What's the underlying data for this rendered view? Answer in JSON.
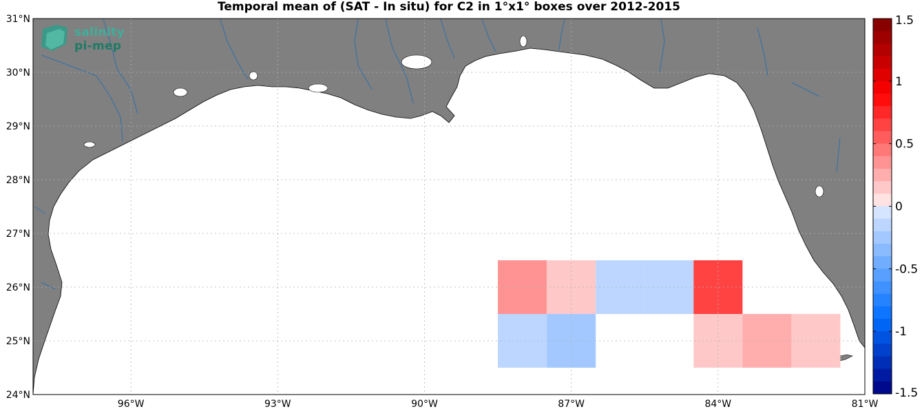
{
  "title": "Temporal mean of (SAT - In situ) for C2 in 1°x1° boxes over 2012-2015",
  "logo": {
    "line1": "salinity",
    "line2": "pi-mep"
  },
  "map": {
    "lon_range": [
      -98.0,
      -81.0
    ],
    "lat_range": [
      24.0,
      31.0
    ],
    "grid": "dotted",
    "land_color": "#808080",
    "river_color": "#2f6fa8",
    "ocean_color": "#ffffff",
    "x_ticks": [
      {
        "lon": -96,
        "label": "96°W"
      },
      {
        "lon": -93,
        "label": "93°W"
      },
      {
        "lon": -90,
        "label": "90°W"
      },
      {
        "lon": -87,
        "label": "87°W"
      },
      {
        "lon": -84,
        "label": "84°W"
      },
      {
        "lon": -81,
        "label": "81°W"
      }
    ],
    "y_ticks": [
      {
        "lat": 31,
        "label": "31°N"
      },
      {
        "lat": 30,
        "label": "30°N"
      },
      {
        "lat": 29,
        "label": "29°N"
      },
      {
        "lat": 28,
        "label": "28°N"
      },
      {
        "lat": 27,
        "label": "27°N"
      },
      {
        "lat": 26,
        "label": "26°N"
      },
      {
        "lat": 25,
        "label": "25°N"
      },
      {
        "lat": 24,
        "label": "24°N"
      }
    ]
  },
  "chart_data": {
    "type": "heatmap",
    "cell_size_deg": 1,
    "cells": [
      {
        "lon": -88,
        "lat": 26,
        "value": 0.3
      },
      {
        "lon": -87,
        "lat": 26,
        "value": 0.12
      },
      {
        "lon": -86,
        "lat": 26,
        "value": -0.1
      },
      {
        "lon": -85,
        "lat": 26,
        "value": -0.1
      },
      {
        "lon": -84,
        "lat": 26,
        "value": 0.62
      },
      {
        "lon": -88,
        "lat": 25,
        "value": -0.1
      },
      {
        "lon": -87,
        "lat": 25,
        "value": -0.22
      },
      {
        "lon": -84,
        "lat": 25,
        "value": 0.15
      },
      {
        "lon": -83,
        "lat": 25,
        "value": 0.28
      },
      {
        "lon": -82,
        "lat": 25,
        "value": 0.12
      }
    ],
    "colorbar": {
      "range": [
        -1.5,
        1.5
      ],
      "steps": 30,
      "ticks": [
        {
          "value": 1.5,
          "label": "1.5"
        },
        {
          "value": 1,
          "label": "1"
        },
        {
          "value": 0.5,
          "label": "0.5"
        },
        {
          "value": 0,
          "label": "0"
        },
        {
          "value": -0.5,
          "label": "-0.5"
        },
        {
          "value": -1,
          "label": "-1"
        },
        {
          "value": -1.5,
          "label": "-1.5"
        }
      ]
    }
  }
}
